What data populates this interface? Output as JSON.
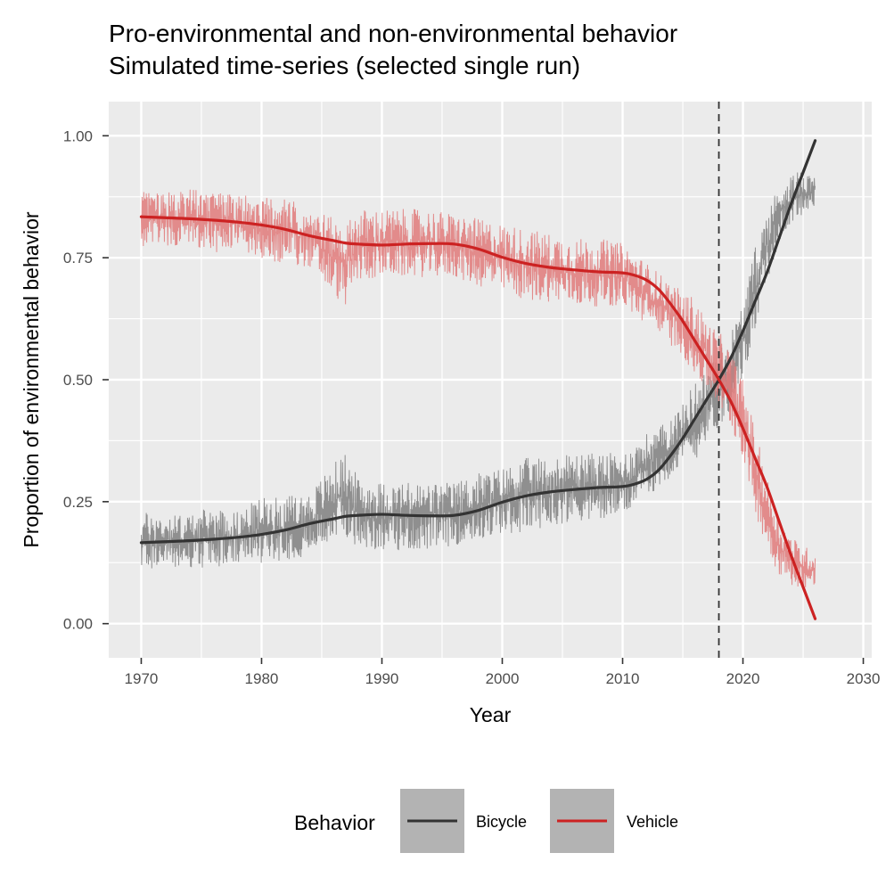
{
  "chart_data": {
    "type": "line",
    "title": "Pro-environmental and non-environmental behavior",
    "subtitle": "Simulated time-series (selected single run)",
    "xlabel": "Year",
    "ylabel": "Proportion of environmental behavior",
    "xlim": [
      1967.3,
      2030.7
    ],
    "ylim": [
      -0.07,
      1.07
    ],
    "x_ticks": [
      1970,
      1980,
      1990,
      2000,
      2010,
      2020,
      2030
    ],
    "x_tick_labels": [
      "1970",
      "1980",
      "1990",
      "2000",
      "2010",
      "2020",
      "2030"
    ],
    "y_ticks": [
      0,
      0.25,
      0.5,
      0.75,
      1
    ],
    "y_tick_labels": [
      "0.00",
      "0.25",
      "0.50",
      "0.75",
      "1.00"
    ],
    "grid": true,
    "reference_line": {
      "x": 2018,
      "style": "dashed",
      "color": "#333333"
    },
    "legend": {
      "title": "Behavior",
      "position": "bottom"
    },
    "raw_series_note_free": true,
    "series": [
      {
        "name": "Bicycle",
        "color": "#333333",
        "raw_color": "#7f7f7f",
        "x": [
          1970,
          1972,
          1974,
          1976,
          1978,
          1980,
          1982,
          1984,
          1986,
          1987,
          1988,
          1990,
          1992,
          1994,
          1996,
          1998,
          2000,
          2002,
          2004,
          2006,
          2008,
          2010,
          2011,
          2012,
          2013,
          2014,
          2015,
          2016,
          2017,
          2018,
          2019,
          2020,
          2021,
          2022,
          2023,
          2024,
          2025,
          2026
        ],
        "values": [
          0.166,
          0.168,
          0.17,
          0.173,
          0.177,
          0.183,
          0.192,
          0.205,
          0.215,
          0.22,
          0.222,
          0.224,
          0.222,
          0.221,
          0.222,
          0.232,
          0.249,
          0.262,
          0.27,
          0.275,
          0.279,
          0.281,
          0.286,
          0.296,
          0.315,
          0.345,
          0.38,
          0.42,
          0.46,
          0.5,
          0.545,
          0.6,
          0.66,
          0.72,
          0.79,
          0.86,
          0.925,
          0.99
        ],
        "raw_envelope_lower": [
          0.11,
          0.115,
          0.11,
          0.115,
          0.12,
          0.125,
          0.13,
          0.14,
          0.17,
          0.18,
          0.15,
          0.15,
          0.15,
          0.15,
          0.16,
          0.17,
          0.18,
          0.19,
          0.2,
          0.21,
          0.21,
          0.22,
          0.24,
          0.26,
          0.28,
          0.3,
          0.32,
          0.33,
          0.38,
          0.4,
          0.44,
          0.5,
          0.6,
          0.7,
          0.78,
          0.82,
          0.84,
          0.85
        ],
        "raw_envelope_upper": [
          0.23,
          0.225,
          0.225,
          0.24,
          0.23,
          0.26,
          0.26,
          0.27,
          0.33,
          0.35,
          0.3,
          0.29,
          0.29,
          0.29,
          0.29,
          0.31,
          0.32,
          0.34,
          0.34,
          0.35,
          0.35,
          0.35,
          0.37,
          0.39,
          0.4,
          0.43,
          0.45,
          0.5,
          0.52,
          0.56,
          0.6,
          0.66,
          0.77,
          0.85,
          0.9,
          0.92,
          0.93,
          0.93
        ]
      },
      {
        "name": "Vehicle",
        "color": "#cc2222",
        "raw_color": "#e07a7a",
        "x": [
          1970,
          1972,
          1974,
          1976,
          1978,
          1980,
          1982,
          1984,
          1986,
          1987,
          1988,
          1990,
          1992,
          1994,
          1996,
          1998,
          2000,
          2002,
          2004,
          2006,
          2008,
          2010,
          2011,
          2012,
          2013,
          2014,
          2015,
          2016,
          2017,
          2018,
          2019,
          2020,
          2021,
          2022,
          2023,
          2024,
          2025,
          2026
        ],
        "values": [
          0.834,
          0.832,
          0.83,
          0.827,
          0.823,
          0.817,
          0.808,
          0.795,
          0.785,
          0.78,
          0.778,
          0.776,
          0.778,
          0.779,
          0.778,
          0.768,
          0.751,
          0.738,
          0.73,
          0.725,
          0.721,
          0.719,
          0.714,
          0.704,
          0.685,
          0.655,
          0.62,
          0.58,
          0.54,
          0.5,
          0.455,
          0.4,
          0.34,
          0.28,
          0.21,
          0.14,
          0.075,
          0.01
        ],
        "raw_envelope_lower": [
          0.77,
          0.775,
          0.775,
          0.76,
          0.77,
          0.74,
          0.74,
          0.73,
          0.67,
          0.65,
          0.7,
          0.71,
          0.71,
          0.71,
          0.71,
          0.69,
          0.68,
          0.66,
          0.66,
          0.65,
          0.65,
          0.65,
          0.63,
          0.61,
          0.6,
          0.57,
          0.55,
          0.5,
          0.48,
          0.44,
          0.4,
          0.34,
          0.23,
          0.15,
          0.1,
          0.08,
          0.07,
          0.07
        ],
        "raw_envelope_upper": [
          0.89,
          0.885,
          0.89,
          0.885,
          0.88,
          0.875,
          0.87,
          0.86,
          0.83,
          0.82,
          0.85,
          0.85,
          0.85,
          0.85,
          0.84,
          0.83,
          0.82,
          0.81,
          0.8,
          0.79,
          0.79,
          0.78,
          0.76,
          0.74,
          0.72,
          0.7,
          0.68,
          0.67,
          0.62,
          0.6,
          0.56,
          0.5,
          0.4,
          0.3,
          0.22,
          0.18,
          0.16,
          0.15
        ]
      }
    ]
  }
}
